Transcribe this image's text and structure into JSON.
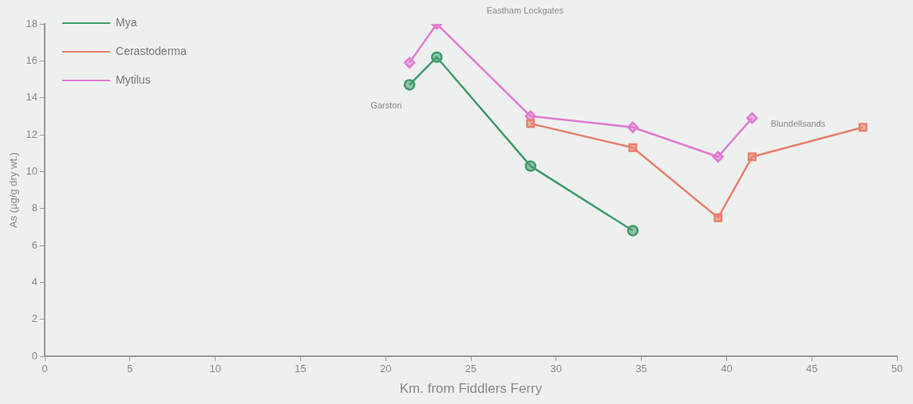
{
  "chart_data": {
    "type": "line",
    "xlabel": "Km. from Fiddlers Ferry",
    "ylabel": "As (µg/g dry wt.)",
    "xlim": [
      0,
      50
    ],
    "xticks": [
      0,
      5,
      10,
      15,
      20,
      25,
      30,
      35,
      40,
      45,
      50
    ],
    "ylim": [
      0,
      18
    ],
    "yticks": [
      0,
      2,
      4,
      6,
      8,
      10,
      12,
      14,
      16,
      18
    ],
    "grid": false,
    "legend": "top left",
    "series": [
      {
        "name": "Mya",
        "color": "#3f9a6c",
        "marker": "circle",
        "x": [
          21.4,
          23,
          28.5,
          34.5
        ],
        "values": [
          14.7,
          16.2,
          10.3,
          6.8
        ]
      },
      {
        "name": "Cerastoderma",
        "color": "#e8806a",
        "marker": "square",
        "x": [
          28.5,
          34.5,
          39.5,
          41.5,
          48
        ],
        "values": [
          12.6,
          11.3,
          7.5,
          10.8,
          12.4
        ]
      },
      {
        "name": "Mytilus",
        "color": "#e07ad0",
        "marker": "diamond",
        "x": [
          21.4,
          23,
          28.5,
          34.5,
          39.5,
          41.5
        ],
        "values": [
          15.9,
          18,
          13,
          12.4,
          10.8,
          12.9
        ]
      }
    ],
    "annotations": [
      "Garston",
      "Eastham Lockgates",
      "Blundellsands"
    ]
  }
}
